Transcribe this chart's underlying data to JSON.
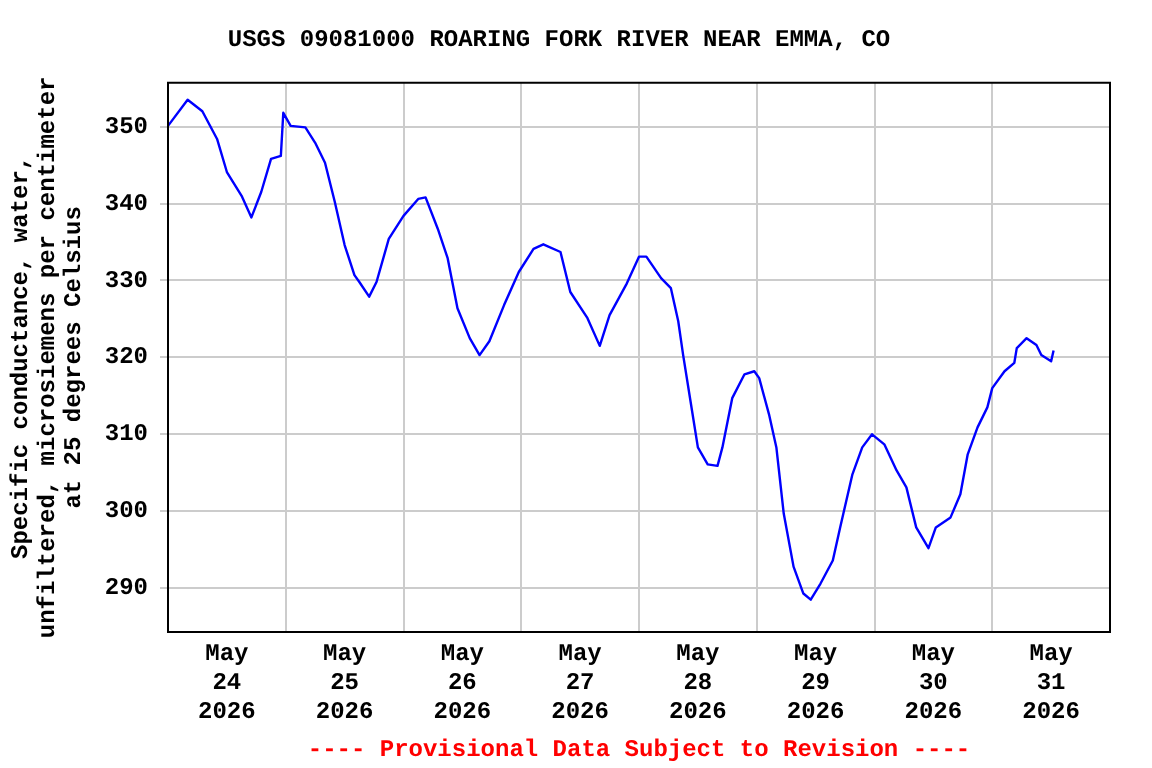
{
  "chart_data": {
    "type": "line",
    "title": "USGS 09081000 ROARING FORK RIVER NEAR EMMA, CO",
    "ylabel": "Specific conductance, water,\nunfiltered, microsiemens per centimeter\nat 25 degrees Celsius",
    "annotations": [
      "---- Provisional Data Subject to Revision ----"
    ],
    "x": [
      "2026-05-24T00:00",
      "2026-05-24T04:00",
      "2026-05-24T07:00",
      "2026-05-24T10:00",
      "2026-05-24T12:00",
      "2026-05-24T15:00",
      "2026-05-24T17:00",
      "2026-05-24T19:00",
      "2026-05-24T21:00",
      "2026-05-24T23:00",
      "2026-05-24T23:30",
      "2026-05-25T01:00",
      "2026-05-25T04:00",
      "2026-05-25T06:00",
      "2026-05-25T08:00",
      "2026-05-25T10:00",
      "2026-05-25T12:00",
      "2026-05-25T14:00",
      "2026-05-25T15:00",
      "2026-05-25T17:00",
      "2026-05-25T18:30",
      "2026-05-25T21:00",
      "2026-05-26T00:00",
      "2026-05-26T03:00",
      "2026-05-26T04:30",
      "2026-05-26T07:00",
      "2026-05-26T09:00",
      "2026-05-26T11:00",
      "2026-05-26T13:30",
      "2026-05-26T15:30",
      "2026-05-26T17:30",
      "2026-05-26T20:30",
      "2026-05-26T23:30",
      "2026-05-27T02:30",
      "2026-05-27T04:30",
      "2026-05-27T08:00",
      "2026-05-27T10:00",
      "2026-05-27T13:30",
      "2026-05-27T16:00",
      "2026-05-27T18:00",
      "2026-05-27T21:30",
      "2026-05-28T00:00",
      "2026-05-28T01:30",
      "2026-05-28T04:30",
      "2026-05-28T06:30",
      "2026-05-28T08:00",
      "2026-05-28T09:00",
      "2026-05-28T10:30",
      "2026-05-28T12:00",
      "2026-05-28T14:00",
      "2026-05-28T16:00",
      "2026-05-28T17:00",
      "2026-05-28T19:00",
      "2026-05-28T21:30",
      "2026-05-28T23:30",
      "2026-05-29T00:30",
      "2026-05-29T02:30",
      "2026-05-29T04:00",
      "2026-05-29T05:30",
      "2026-05-29T07:30",
      "2026-05-29T09:30",
      "2026-05-29T11:00",
      "2026-05-29T13:00",
      "2026-05-29T15:30",
      "2026-05-29T17:00",
      "2026-05-29T19:30",
      "2026-05-29T21:30",
      "2026-05-29T23:30",
      "2026-05-30T02:00",
      "2026-05-30T04:30",
      "2026-05-30T06:30",
      "2026-05-30T08:30",
      "2026-05-30T11:00",
      "2026-05-30T12:30",
      "2026-05-30T15:30",
      "2026-05-30T17:30",
      "2026-05-30T19:00",
      "2026-05-30T21:00",
      "2026-05-30T23:00",
      "2026-05-31T00:00",
      "2026-05-31T02:30",
      "2026-05-31T04:30",
      "2026-05-31T05:00",
      "2026-05-31T07:00",
      "2026-05-31T09:00",
      "2026-05-31T10:00",
      "2026-05-31T12:00",
      "2026-05-31T12:30"
    ],
    "values": [
      350.1,
      353.5,
      352,
      348.4,
      344.1,
      341,
      338.2,
      341.5,
      345.8,
      346.2,
      351.8,
      350.1,
      349.9,
      347.9,
      345.3,
      340.2,
      334.6,
      330.7,
      329.8,
      327.9,
      329.8,
      335.4,
      338.4,
      340.6,
      340.8,
      336.7,
      332.9,
      326.4,
      322.5,
      320.3,
      322.1,
      326.8,
      331.1,
      334.1,
      334.7,
      333.7,
      328.5,
      325.1,
      321.5,
      325.5,
      329.6,
      333.1,
      333.1,
      330.3,
      329,
      324.7,
      320.3,
      314.3,
      308.3,
      306.1,
      305.9,
      308.3,
      314.7,
      317.8,
      318.2,
      317.3,
      312.6,
      308.3,
      299.7,
      292.8,
      289.3,
      288.5,
      290.6,
      293.6,
      297.9,
      304.8,
      308.3,
      310,
      308.7,
      305.3,
      303.1,
      297.9,
      295.2,
      297.9,
      299.2,
      302.2,
      307.4,
      310.9,
      313.5,
      316,
      318.2,
      319.3,
      321.2,
      322.5,
      321.6,
      320.3,
      319.5,
      320.9
    ],
    "color": "#0000ff",
    "xlim": [
      "2026-05-24",
      "2026-06-01"
    ],
    "xticks": [
      {
        "value": "2026-05-24T12:00",
        "label": "May\n24\n2026"
      },
      {
        "value": "2026-05-25",
        "label": null
      },
      {
        "value": "2026-05-25T12:00",
        "label": "May\n25\n2026"
      },
      {
        "value": "2026-05-26",
        "label": null
      },
      {
        "value": "2026-05-26T12:00",
        "label": "May\n26\n2026"
      },
      {
        "value": "2026-05-27",
        "label": null
      },
      {
        "value": "2026-05-27T12:00",
        "label": "May\n27\n2026"
      },
      {
        "value": "2026-05-28",
        "label": null
      },
      {
        "value": "2026-05-28T12:00",
        "label": "May\n28\n2026"
      },
      {
        "value": "2026-05-29",
        "label": null
      },
      {
        "value": "2026-05-29T12:00",
        "label": "May\n29\n2026"
      },
      {
        "value": "2026-05-30",
        "label": null
      },
      {
        "value": "2026-05-30T12:00",
        "label": "May\n30\n2026"
      },
      {
        "value": "2026-05-31",
        "label": null
      },
      {
        "value": "2026-05-31T12:00",
        "label": "May\n31\n2026"
      }
    ],
    "ylim": [
      284.3,
      355.7
    ],
    "yticks": [
      290,
      300,
      310,
      320,
      330,
      340,
      350
    ],
    "grid": true,
    "marker": "none",
    "line_style": "solid"
  }
}
